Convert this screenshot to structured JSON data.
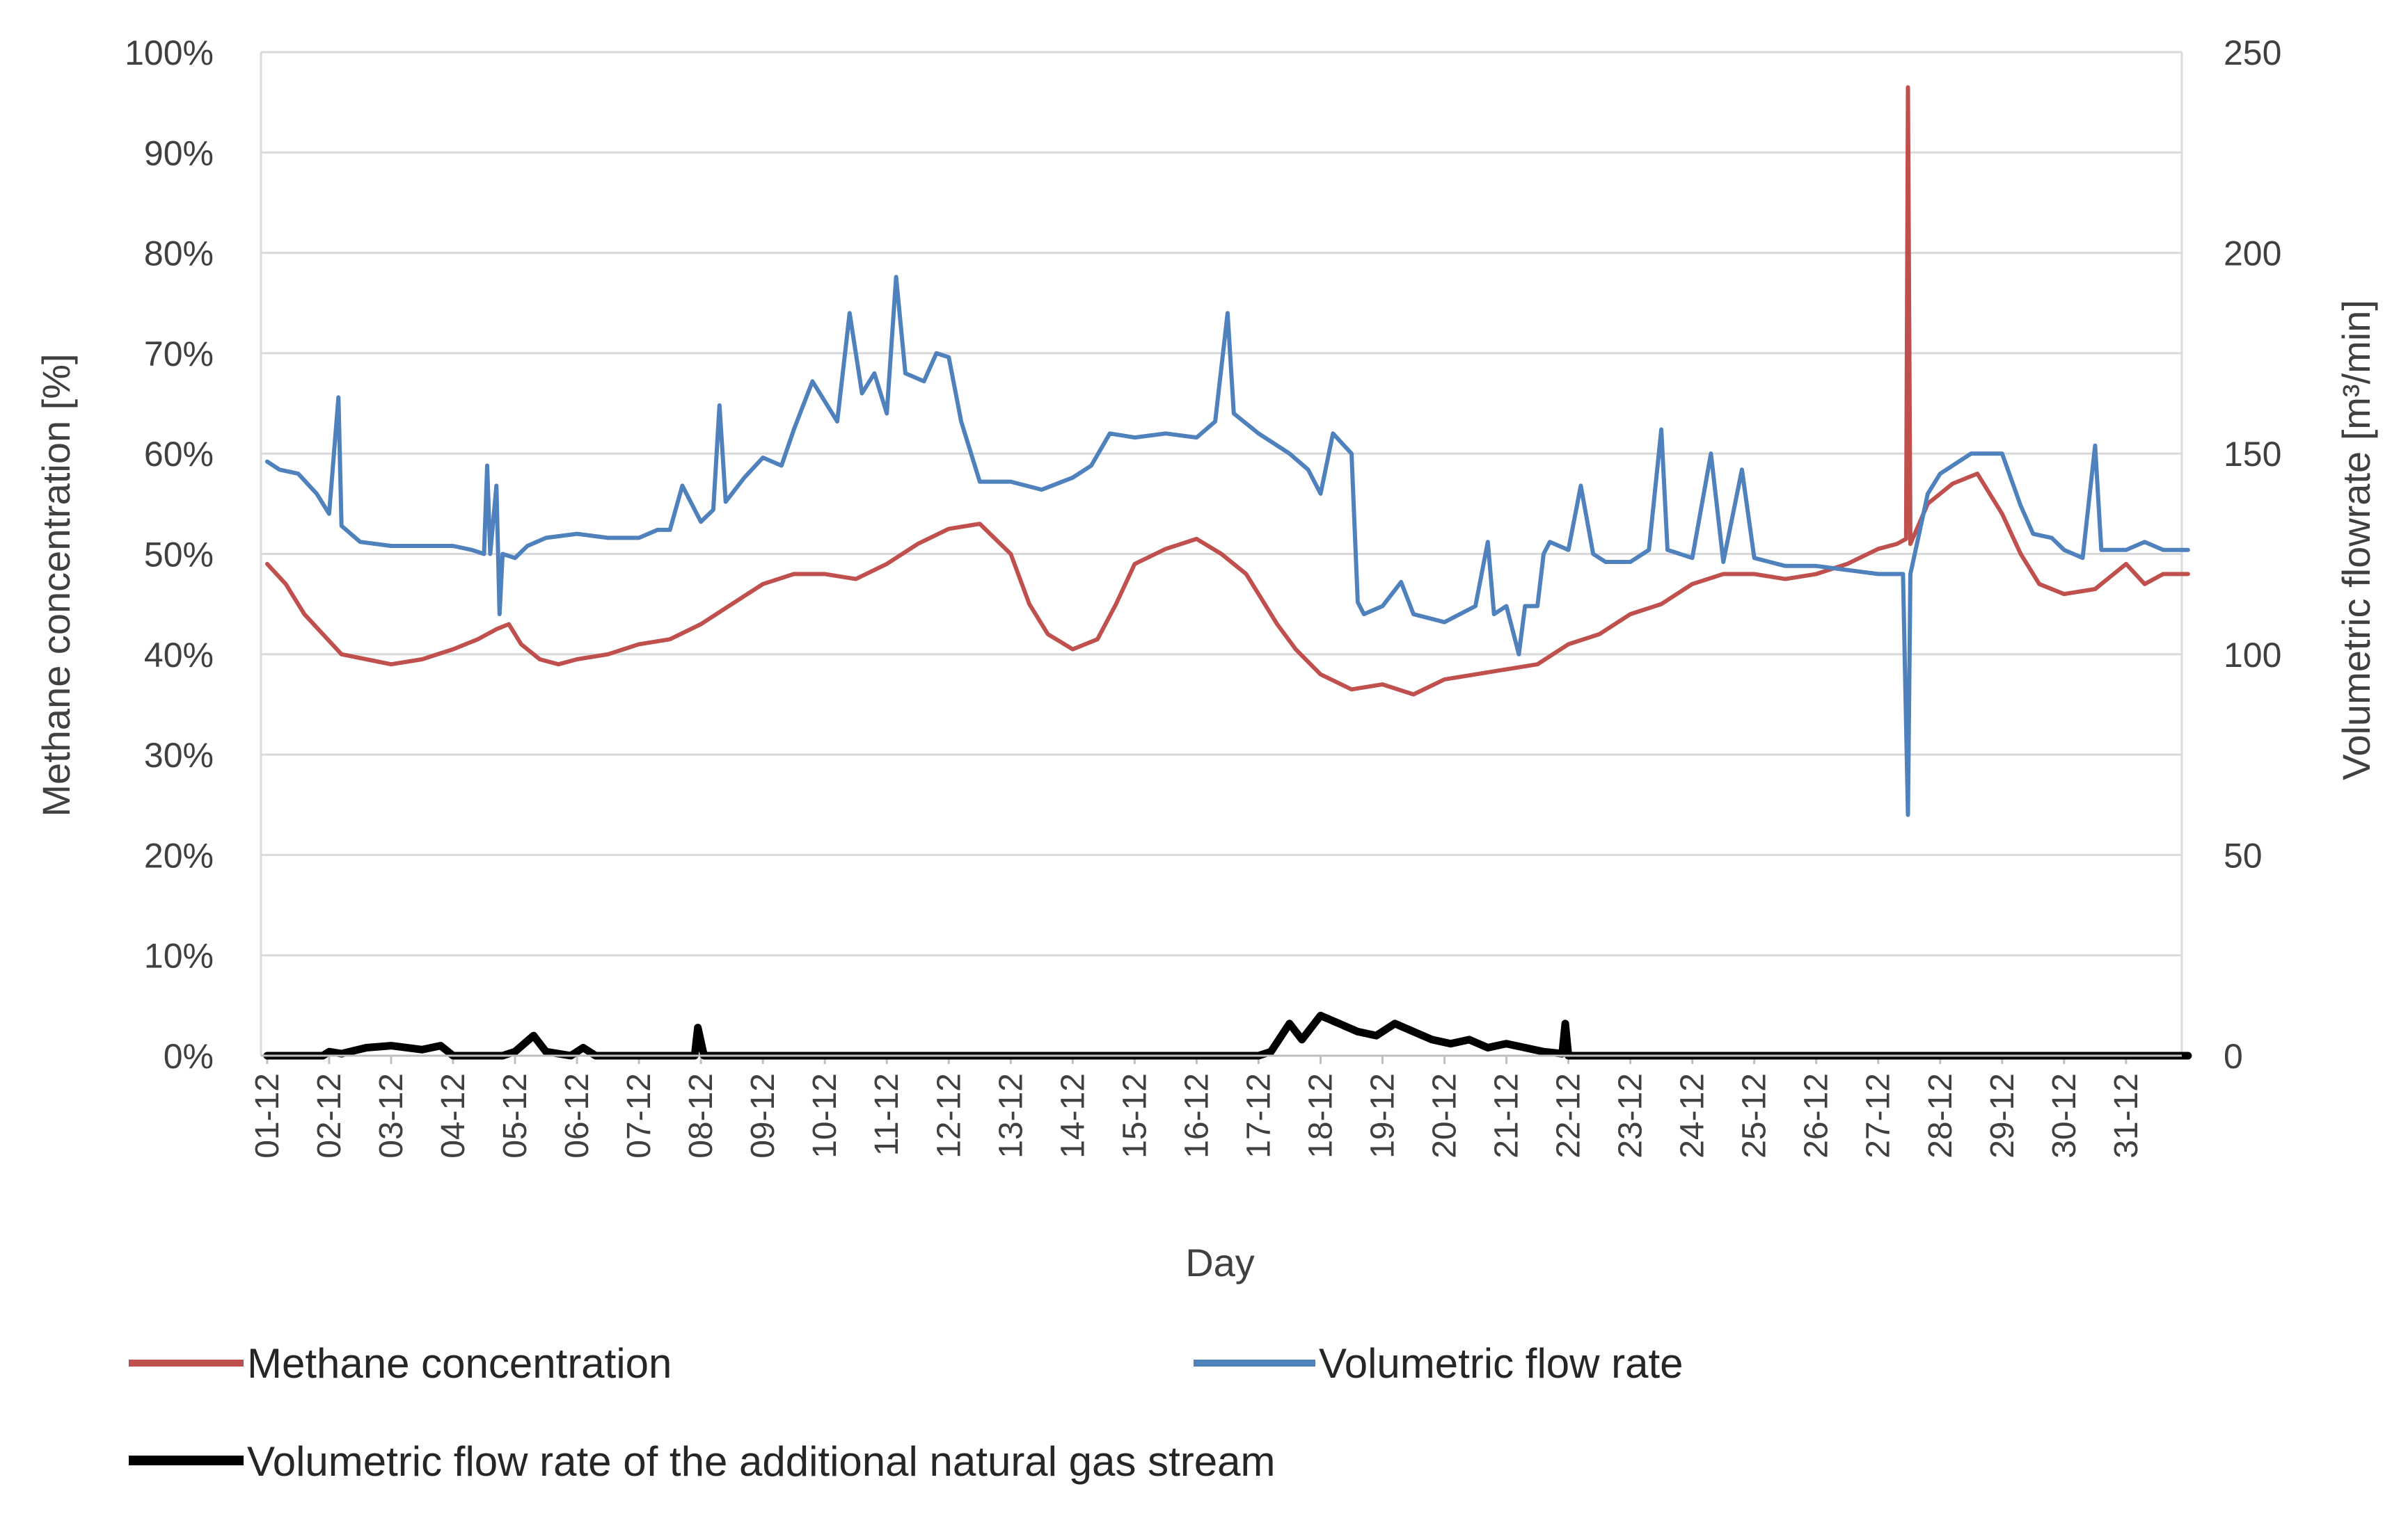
{
  "chart_data": {
    "type": "line",
    "xlabel": "Day",
    "ylabel_left": "Methane  concentration [%]",
    "ylabel_right": "Volumetric flowrate  [m³/min]",
    "y_left": {
      "min": 0,
      "max": 100,
      "ticks": [
        "0%",
        "10%",
        "20%",
        "30%",
        "40%",
        "50%",
        "60%",
        "70%",
        "80%",
        "90%",
        "100%"
      ]
    },
    "y_right": {
      "min": 0,
      "max": 250,
      "ticks": [
        "0",
        "50",
        "100",
        "150",
        "200",
        "250"
      ]
    },
    "categories": [
      "01-12",
      "02-12",
      "03-12",
      "04-12",
      "05-12",
      "06-12",
      "07-12",
      "08-12",
      "09-12",
      "10-12",
      "11-12",
      "12-12",
      "13-12",
      "14-12",
      "15-12",
      "16-12",
      "17-12",
      "18-12",
      "19-12",
      "20-12",
      "21-12",
      "22-12",
      "23-12",
      "24-12",
      "25-12",
      "26-12",
      "27-12",
      "28-12",
      "29-12",
      "30-12",
      "31-12"
    ],
    "grid": "horizontal",
    "legend_position": "bottom",
    "series": [
      {
        "name": "Methane concentration",
        "axis": "left",
        "color": "#c0504d",
        "points": [
          [
            0,
            49
          ],
          [
            0.3,
            47
          ],
          [
            0.6,
            44
          ],
          [
            0.9,
            42
          ],
          [
            1.2,
            40
          ],
          [
            1.6,
            39.5
          ],
          [
            2.0,
            39
          ],
          [
            2.5,
            39.5
          ],
          [
            3.0,
            40.5
          ],
          [
            3.4,
            41.5
          ],
          [
            3.7,
            42.5
          ],
          [
            3.9,
            43
          ],
          [
            4.1,
            41
          ],
          [
            4.4,
            39.5
          ],
          [
            4.7,
            39
          ],
          [
            5.0,
            39.5
          ],
          [
            5.5,
            40
          ],
          [
            6.0,
            41
          ],
          [
            6.5,
            41.5
          ],
          [
            7.0,
            43
          ],
          [
            7.5,
            45
          ],
          [
            8.0,
            47
          ],
          [
            8.5,
            48
          ],
          [
            9.0,
            48
          ],
          [
            9.5,
            47.5
          ],
          [
            10.0,
            49
          ],
          [
            10.5,
            51
          ],
          [
            11.0,
            52.5
          ],
          [
            11.5,
            53
          ],
          [
            12.0,
            50
          ],
          [
            12.3,
            45
          ],
          [
            12.6,
            42
          ],
          [
            13.0,
            40.5
          ],
          [
            13.4,
            41.5
          ],
          [
            13.7,
            45
          ],
          [
            14.0,
            49
          ],
          [
            14.5,
            50.5
          ],
          [
            15.0,
            51.5
          ],
          [
            15.4,
            50
          ],
          [
            15.8,
            48
          ],
          [
            16.0,
            46
          ],
          [
            16.3,
            43
          ],
          [
            16.6,
            40.5
          ],
          [
            17.0,
            38
          ],
          [
            17.5,
            36.5
          ],
          [
            18.0,
            37
          ],
          [
            18.5,
            36
          ],
          [
            19.0,
            37.5
          ],
          [
            19.5,
            38
          ],
          [
            20.0,
            38.5
          ],
          [
            20.5,
            39
          ],
          [
            21.0,
            41
          ],
          [
            21.5,
            42
          ],
          [
            22.0,
            44
          ],
          [
            22.5,
            45
          ],
          [
            23.0,
            47
          ],
          [
            23.5,
            48
          ],
          [
            24.0,
            48
          ],
          [
            24.5,
            47.5
          ],
          [
            25.0,
            48
          ],
          [
            25.5,
            49
          ],
          [
            26.0,
            50.5
          ],
          [
            26.3,
            51
          ],
          [
            26.45,
            51.5
          ],
          [
            26.48,
            96.5
          ],
          [
            26.52,
            51
          ],
          [
            26.8,
            55
          ],
          [
            27.2,
            57
          ],
          [
            27.6,
            58
          ],
          [
            28.0,
            54
          ],
          [
            28.3,
            50
          ],
          [
            28.6,
            47
          ],
          [
            29.0,
            46
          ],
          [
            29.5,
            46.5
          ],
          [
            30.0,
            49
          ],
          [
            30.3,
            47
          ],
          [
            30.6,
            48
          ],
          [
            31.0,
            48
          ]
        ]
      },
      {
        "name": "Volumetric flow rate",
        "axis": "right",
        "color": "#4f81bd",
        "points": [
          [
            0,
            148
          ],
          [
            0.2,
            146
          ],
          [
            0.5,
            145
          ],
          [
            0.8,
            140
          ],
          [
            1.0,
            135
          ],
          [
            1.15,
            164
          ],
          [
            1.2,
            132
          ],
          [
            1.5,
            128
          ],
          [
            2.0,
            127
          ],
          [
            2.5,
            127
          ],
          [
            3.0,
            127
          ],
          [
            3.3,
            126
          ],
          [
            3.5,
            125
          ],
          [
            3.55,
            147
          ],
          [
            3.6,
            125
          ],
          [
            3.7,
            142
          ],
          [
            3.75,
            110
          ],
          [
            3.8,
            125
          ],
          [
            4.0,
            124
          ],
          [
            4.2,
            127
          ],
          [
            4.5,
            129
          ],
          [
            5.0,
            130
          ],
          [
            5.5,
            129
          ],
          [
            6.0,
            129
          ],
          [
            6.3,
            131
          ],
          [
            6.5,
            131
          ],
          [
            6.7,
            142
          ],
          [
            7.0,
            133
          ],
          [
            7.2,
            136
          ],
          [
            7.3,
            162
          ],
          [
            7.4,
            138
          ],
          [
            7.7,
            144
          ],
          [
            8.0,
            149
          ],
          [
            8.3,
            147
          ],
          [
            8.5,
            156
          ],
          [
            8.8,
            168
          ],
          [
            9.0,
            163
          ],
          [
            9.2,
            158
          ],
          [
            9.4,
            185
          ],
          [
            9.6,
            165
          ],
          [
            9.8,
            170
          ],
          [
            10.0,
            160
          ],
          [
            10.15,
            194
          ],
          [
            10.3,
            170
          ],
          [
            10.6,
            168
          ],
          [
            10.8,
            175
          ],
          [
            11.0,
            174
          ],
          [
            11.2,
            158
          ],
          [
            11.5,
            143
          ],
          [
            12.0,
            143
          ],
          [
            12.5,
            141
          ],
          [
            13.0,
            144
          ],
          [
            13.3,
            147
          ],
          [
            13.6,
            155
          ],
          [
            14.0,
            154
          ],
          [
            14.5,
            155
          ],
          [
            15.0,
            154
          ],
          [
            15.3,
            158
          ],
          [
            15.5,
            185
          ],
          [
            15.6,
            160
          ],
          [
            16.0,
            155
          ],
          [
            16.5,
            150
          ],
          [
            16.8,
            146
          ],
          [
            17.0,
            140
          ],
          [
            17.2,
            155
          ],
          [
            17.5,
            150
          ],
          [
            17.6,
            113
          ],
          [
            17.7,
            110
          ],
          [
            18.0,
            112
          ],
          [
            18.3,
            118
          ],
          [
            18.5,
            110
          ],
          [
            19.0,
            108
          ],
          [
            19.5,
            112
          ],
          [
            19.7,
            128
          ],
          [
            19.8,
            110
          ],
          [
            20.0,
            112
          ],
          [
            20.2,
            100
          ],
          [
            20.3,
            112
          ],
          [
            20.5,
            112
          ],
          [
            20.6,
            125
          ],
          [
            20.7,
            128
          ],
          [
            21.0,
            126
          ],
          [
            21.2,
            142
          ],
          [
            21.4,
            125
          ],
          [
            21.6,
            123
          ],
          [
            22.0,
            123
          ],
          [
            22.3,
            126
          ],
          [
            22.5,
            156
          ],
          [
            22.6,
            126
          ],
          [
            23.0,
            124
          ],
          [
            23.3,
            150
          ],
          [
            23.5,
            123
          ],
          [
            23.8,
            146
          ],
          [
            24.0,
            124
          ],
          [
            24.5,
            122
          ],
          [
            25.0,
            122
          ],
          [
            25.5,
            121
          ],
          [
            26.0,
            120
          ],
          [
            26.4,
            120
          ],
          [
            26.48,
            60
          ],
          [
            26.52,
            120
          ],
          [
            26.8,
            140
          ],
          [
            27.0,
            145
          ],
          [
            27.5,
            150
          ],
          [
            28.0,
            150
          ],
          [
            28.3,
            137
          ],
          [
            28.5,
            130
          ],
          [
            28.8,
            129
          ],
          [
            29.0,
            126
          ],
          [
            29.3,
            124
          ],
          [
            29.5,
            152
          ],
          [
            29.6,
            126
          ],
          [
            30.0,
            126
          ],
          [
            30.3,
            128
          ],
          [
            30.6,
            126
          ],
          [
            31.0,
            126
          ]
        ]
      },
      {
        "name": "Volumetric flow rate of the additional natural gas stream",
        "axis": "right",
        "color": "#000000",
        "points": [
          [
            0,
            0
          ],
          [
            0.9,
            0
          ],
          [
            1.0,
            1
          ],
          [
            1.2,
            0.5
          ],
          [
            1.6,
            2
          ],
          [
            2.0,
            2.5
          ],
          [
            2.5,
            1.5
          ],
          [
            2.8,
            2.5
          ],
          [
            3.0,
            0
          ],
          [
            3.8,
            0
          ],
          [
            4.0,
            1
          ],
          [
            4.3,
            5
          ],
          [
            4.5,
            1
          ],
          [
            4.9,
            0
          ],
          [
            5.1,
            2
          ],
          [
            5.3,
            0
          ],
          [
            6.9,
            0
          ],
          [
            6.95,
            7
          ],
          [
            7.05,
            0
          ],
          [
            16.0,
            0
          ],
          [
            16.2,
            1
          ],
          [
            16.5,
            8
          ],
          [
            16.7,
            4
          ],
          [
            17.0,
            10
          ],
          [
            17.3,
            8
          ],
          [
            17.6,
            6
          ],
          [
            17.9,
            5
          ],
          [
            18.2,
            8
          ],
          [
            18.5,
            6
          ],
          [
            18.8,
            4
          ],
          [
            19.1,
            3
          ],
          [
            19.4,
            4
          ],
          [
            19.7,
            2
          ],
          [
            20.0,
            3
          ],
          [
            20.3,
            2
          ],
          [
            20.6,
            1
          ],
          [
            20.9,
            0.5
          ],
          [
            20.95,
            8
          ],
          [
            21.0,
            0
          ],
          [
            31.0,
            0
          ]
        ]
      }
    ]
  }
}
